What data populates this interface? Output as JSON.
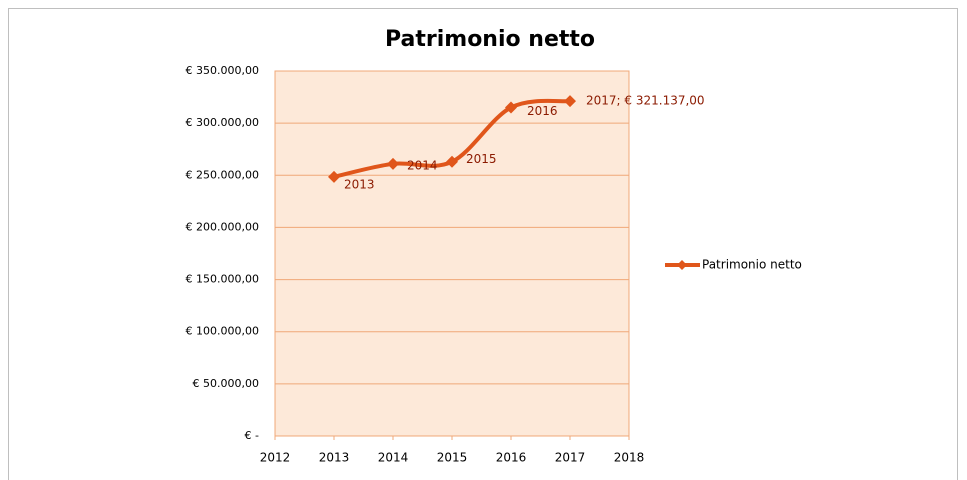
{
  "chart_data": {
    "type": "line",
    "title": "Patrimonio netto",
    "x": [
      2013,
      2014,
      2015,
      2016,
      2017
    ],
    "series": [
      {
        "name": "Patrimonio netto",
        "color": "#e0561b",
        "values": [
          248500,
          261000,
          263000,
          315000,
          321137
        ]
      }
    ],
    "data_labels": [
      "2013",
      "2014",
      "2015",
      "2016",
      "2017; € 321.137,00"
    ],
    "xlim": [
      2012,
      2018
    ],
    "xticks": [
      2012,
      2013,
      2014,
      2015,
      2016,
      2017,
      2018
    ],
    "ylim": [
      0,
      350000
    ],
    "yticks": [
      {
        "value": 0,
        "label": "€ -"
      },
      {
        "value": 50000,
        "label": "€ 50.000,00"
      },
      {
        "value": 100000,
        "label": "€ 100.000,00"
      },
      {
        "value": 150000,
        "label": "€ 150.000,00"
      },
      {
        "value": 200000,
        "label": "€ 200.000,00"
      },
      {
        "value": 250000,
        "label": "€ 250.000,00"
      },
      {
        "value": 300000,
        "label": "€ 300.000,00"
      },
      {
        "value": 350000,
        "label": "€ 350.000,00"
      }
    ],
    "grid": true,
    "legend": "right"
  }
}
